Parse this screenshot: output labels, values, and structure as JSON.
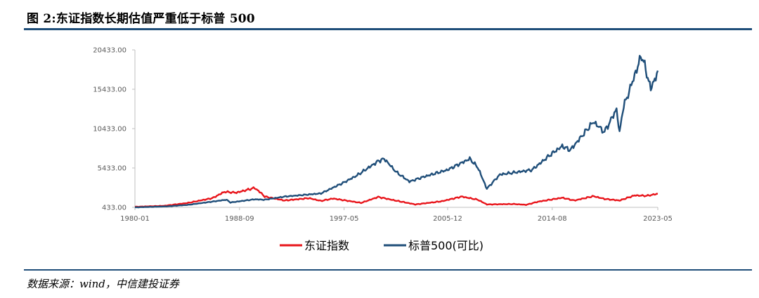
{
  "header": {
    "title": "图 2:东证指数长期估值严重低于标普 500"
  },
  "footer": {
    "source": "数据来源：wind，中信建投证券"
  },
  "colors": {
    "accent_rule": "#1f4e79"
  },
  "chart_data": {
    "type": "line",
    "title": "",
    "xlabel": "",
    "ylabel": "",
    "ylim": [
      433.0,
      20433.0
    ],
    "yticks": [
      "433.00",
      "5433.00",
      "10433.00",
      "15433.00",
      "20433.00"
    ],
    "xticks": [
      "1980-01",
      "1988-09",
      "1997-05",
      "2005-12",
      "2014-08",
      "2023-05"
    ],
    "grid": false,
    "legend_position": "bottom-center",
    "series": [
      {
        "name": "东证指数",
        "color": "#e8151b",
        "points": [
          [
            "1980-01",
            500
          ],
          [
            "1982-06",
            620
          ],
          [
            "1984-06",
            1000
          ],
          [
            "1986-06",
            1600
          ],
          [
            "1987-06",
            2400
          ],
          [
            "1988-06",
            2300
          ],
          [
            "1989-12",
            2900
          ],
          [
            "1990-06",
            2300
          ],
          [
            "1990-10",
            1800
          ],
          [
            "1992-06",
            1300
          ],
          [
            "1994-06",
            1600
          ],
          [
            "1995-06",
            1250
          ],
          [
            "1996-06",
            1550
          ],
          [
            "1998-10",
            1000
          ],
          [
            "2000-03",
            1750
          ],
          [
            "2001-06",
            1350
          ],
          [
            "2003-04",
            800
          ],
          [
            "2005-06",
            1200
          ],
          [
            "2007-02",
            1800
          ],
          [
            "2008-06",
            1400
          ],
          [
            "2009-03",
            800
          ],
          [
            "2011-06",
            850
          ],
          [
            "2012-06",
            750
          ],
          [
            "2013-06",
            1150
          ],
          [
            "2015-06",
            1650
          ],
          [
            "2016-06",
            1300
          ],
          [
            "2018-01",
            1850
          ],
          [
            "2018-12",
            1500
          ],
          [
            "2020-03",
            1300
          ],
          [
            "2021-06",
            1950
          ],
          [
            "2022-06",
            1900
          ],
          [
            "2023-05",
            2150
          ]
        ]
      },
      {
        "name": "标普500(可比)",
        "color": "#1f4e79",
        "points": [
          [
            "1980-01",
            433
          ],
          [
            "1982-08",
            550
          ],
          [
            "1984-06",
            750
          ],
          [
            "1987-08",
            1400
          ],
          [
            "1987-12",
            1050
          ],
          [
            "1989-12",
            1450
          ],
          [
            "1990-10",
            1400
          ],
          [
            "1992-06",
            1800
          ],
          [
            "1995-06",
            2200
          ],
          [
            "1997-05",
            3600
          ],
          [
            "1998-06",
            4500
          ],
          [
            "2000-03",
            6300
          ],
          [
            "2000-09",
            6600
          ],
          [
            "2001-09",
            4900
          ],
          [
            "2002-10",
            3700
          ],
          [
            "2003-12",
            4300
          ],
          [
            "2005-12",
            5200
          ],
          [
            "2007-10",
            6600
          ],
          [
            "2008-06",
            5500
          ],
          [
            "2009-03",
            2800
          ],
          [
            "2010-04",
            4600
          ],
          [
            "2011-09",
            4900
          ],
          [
            "2012-12",
            5200
          ],
          [
            "2014-08",
            7300
          ],
          [
            "2015-06",
            8200
          ],
          [
            "2016-02",
            7700
          ],
          [
            "2018-01",
            11300
          ],
          [
            "2018-12",
            10000
          ],
          [
            "2019-12",
            12900
          ],
          [
            "2020-03",
            9800
          ],
          [
            "2020-06",
            12800
          ],
          [
            "2021-06",
            17200
          ],
          [
            "2022-01",
            19800
          ],
          [
            "2022-10",
            15500
          ],
          [
            "2023-02",
            16700
          ],
          [
            "2023-05",
            17800
          ]
        ]
      }
    ]
  }
}
